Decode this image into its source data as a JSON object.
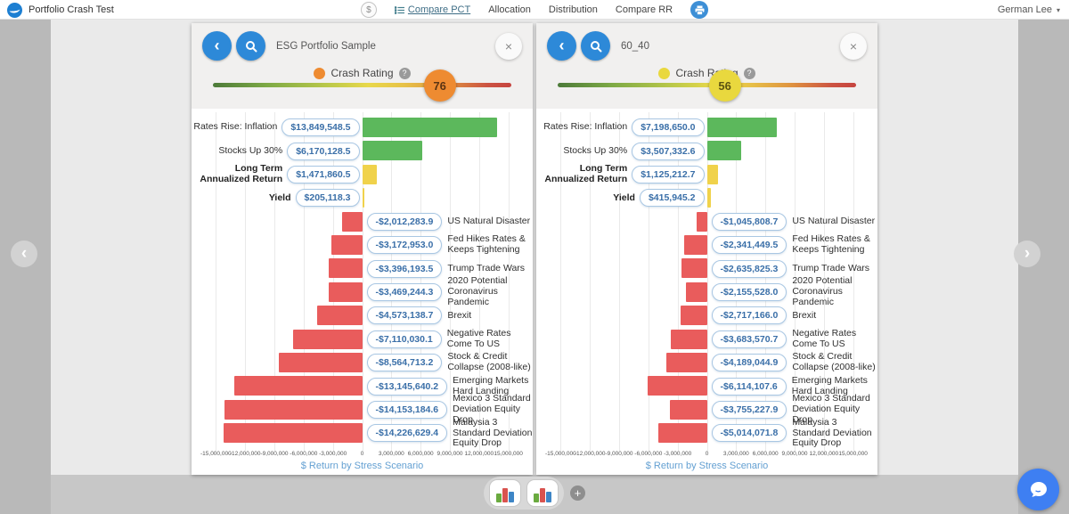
{
  "topbar": {
    "title": "Portfolio Crash Test",
    "currency_button": "$",
    "nav": [
      {
        "label": "Compare PCT",
        "active": true
      },
      {
        "label": "Allocation",
        "active": false
      },
      {
        "label": "Distribution",
        "active": false
      },
      {
        "label": "Compare RR",
        "active": false
      }
    ],
    "user": {
      "name": "German Lee"
    }
  },
  "icons": {
    "close": "×",
    "back": "‹",
    "help": "?",
    "caret": "▾",
    "prev": "‹",
    "next": "›",
    "add": "+"
  },
  "palette": {
    "positive": "#5cb85c",
    "neutral": "#f0d24b",
    "negative": "#e95c5c",
    "accent_blue": "#2d89d8",
    "pill_border": "#a9c7e3",
    "pill_text": "#3a6fa8",
    "axis_label_color": "#64a0d2"
  },
  "panels": [
    {
      "title": "ESG Portfolio Sample",
      "crash_rating": {
        "label": "Crash Rating",
        "value": 76,
        "marker_color": "#ee8b31",
        "text_color": "#5a3413"
      },
      "chart_data": {
        "type": "bar",
        "orientation": "horizontal",
        "xlabel": "$ Return by Stress Scenario",
        "xlim": [
          -17500000,
          17500000
        ],
        "grid": true,
        "ticks": [
          {
            "value": -15000000,
            "label": "-15,000,000"
          },
          {
            "value": -12000000,
            "label": "-12,000,000"
          },
          {
            "value": -9000000,
            "label": "-9,000,000"
          },
          {
            "value": -6000000,
            "label": "-6,000,000"
          },
          {
            "value": -3000000,
            "label": "-3,000,000"
          },
          {
            "value": 0,
            "label": "0"
          },
          {
            "value": 3000000,
            "label": "3,000,000"
          },
          {
            "value": 6000000,
            "label": "6,000,000"
          },
          {
            "value": 9000000,
            "label": "9,000,000"
          },
          {
            "value": 12000000,
            "label": "12,000,000"
          },
          {
            "value": 15000000,
            "label": "15,000,000"
          }
        ],
        "rows": [
          {
            "label": "Rates Rise: Inflation",
            "value": 13849548.5,
            "value_label": "$13,849,548.5",
            "color": "positive",
            "bold": false
          },
          {
            "label": "Stocks Up 30%",
            "value": 6170128.5,
            "value_label": "$6,170,128.5",
            "color": "positive",
            "bold": false
          },
          {
            "label": "Long Term Annualized Return",
            "value": 1471860.5,
            "value_label": "$1,471,860.5",
            "color": "neutral",
            "bold": true
          },
          {
            "label": "Yield",
            "value": 205118.3,
            "value_label": "$205,118.3",
            "color": "neutral",
            "bold": true
          },
          {
            "label": "US Natural Disaster",
            "value": -2012283.9,
            "value_label": "-$2,012,283.9",
            "color": "negative",
            "bold": false
          },
          {
            "label": "Fed Hikes Rates & Keeps Tightening",
            "value": -3172953.0,
            "value_label": "-$3,172,953.0",
            "color": "negative",
            "bold": false
          },
          {
            "label": "Trump Trade Wars",
            "value": -3396193.5,
            "value_label": "-$3,396,193.5",
            "color": "negative",
            "bold": false
          },
          {
            "label": "2020 Potential Coronavirus Pandemic",
            "value": -3469244.3,
            "value_label": "-$3,469,244.3",
            "color": "negative",
            "bold": false
          },
          {
            "label": "Brexit",
            "value": -4573138.7,
            "value_label": "-$4,573,138.7",
            "color": "negative",
            "bold": false
          },
          {
            "label": "Negative Rates Come To US",
            "value": -7110030.1,
            "value_label": "-$7,110,030.1",
            "color": "negative",
            "bold": false
          },
          {
            "label": "Stock & Credit Collapse (2008-like)",
            "value": -8564713.2,
            "value_label": "-$8,564,713.2",
            "color": "negative",
            "bold": false
          },
          {
            "label": "Emerging Markets Hard Landing",
            "value": -13145640.2,
            "value_label": "-$13,145,640.2",
            "color": "negative",
            "bold": false
          },
          {
            "label": "Mexico 3 Standard Deviation Equity Drop",
            "value": -14153184.6,
            "value_label": "-$14,153,184.6",
            "color": "negative",
            "bold": false
          },
          {
            "label": "Malaysia 3 Standard Deviation Equity Drop",
            "value": -14226629.4,
            "value_label": "-$14,226,629.4",
            "color": "negative",
            "bold": false
          }
        ]
      }
    },
    {
      "title": "60_40",
      "crash_rating": {
        "label": "Crash Rating",
        "value": 56,
        "marker_color": "#e9d83e",
        "text_color": "#5d5412"
      },
      "chart_data": {
        "type": "bar",
        "orientation": "horizontal",
        "xlabel": "$ Return by Stress Scenario",
        "xlim": [
          -17500000,
          17500000
        ],
        "grid": true,
        "ticks": [
          {
            "value": -15000000,
            "label": "-15,000,000"
          },
          {
            "value": -12000000,
            "label": "-12,000,000"
          },
          {
            "value": -9000000,
            "label": "-9,000,000"
          },
          {
            "value": -6000000,
            "label": "-6,000,000"
          },
          {
            "value": -3000000,
            "label": "-3,000,000"
          },
          {
            "value": 0,
            "label": "0"
          },
          {
            "value": 3000000,
            "label": "3,000,000"
          },
          {
            "value": 6000000,
            "label": "6,000,000"
          },
          {
            "value": 9000000,
            "label": "9,000,000"
          },
          {
            "value": 12000000,
            "label": "12,000,000"
          },
          {
            "value": 15000000,
            "label": "15,000,000"
          }
        ],
        "rows": [
          {
            "label": "Rates Rise: Inflation",
            "value": 7198650.0,
            "value_label": "$7,198,650.0",
            "color": "positive",
            "bold": false
          },
          {
            "label": "Stocks Up 30%",
            "value": 3507332.6,
            "value_label": "$3,507,332.6",
            "color": "positive",
            "bold": false
          },
          {
            "label": "Long Term Annualized Return",
            "value": 1125212.7,
            "value_label": "$1,125,212.7",
            "color": "neutral",
            "bold": true
          },
          {
            "label": "Yield",
            "value": 415945.2,
            "value_label": "$415,945.2",
            "color": "neutral",
            "bold": true
          },
          {
            "label": "US Natural Disaster",
            "value": -1045808.7,
            "value_label": "-$1,045,808.7",
            "color": "negative",
            "bold": false
          },
          {
            "label": "Fed Hikes Rates & Keeps Tightening",
            "value": -2341449.5,
            "value_label": "-$2,341,449.5",
            "color": "negative",
            "bold": false
          },
          {
            "label": "Trump Trade Wars",
            "value": -2635825.3,
            "value_label": "-$2,635,825.3",
            "color": "negative",
            "bold": false
          },
          {
            "label": "2020 Potential Coronavirus Pandemic",
            "value": -2155528.0,
            "value_label": "-$2,155,528.0",
            "color": "negative",
            "bold": false
          },
          {
            "label": "Brexit",
            "value": -2717166.0,
            "value_label": "-$2,717,166.0",
            "color": "negative",
            "bold": false
          },
          {
            "label": "Negative Rates Come To US",
            "value": -3683570.7,
            "value_label": "-$3,683,570.7",
            "color": "negative",
            "bold": false
          },
          {
            "label": "Stock & Credit Collapse (2008-like)",
            "value": -4189044.9,
            "value_label": "-$4,189,044.9",
            "color": "negative",
            "bold": false
          },
          {
            "label": "Emerging Markets Hard Landing",
            "value": -6114107.6,
            "value_label": "-$6,114,107.6",
            "color": "negative",
            "bold": false
          },
          {
            "label": "Mexico 3 Standard Deviation Equity Drop",
            "value": -3755227.9,
            "value_label": "-$3,755,227.9",
            "color": "negative",
            "bold": false
          },
          {
            "label": "Malaysia 3 Standard Deviation Equity Drop",
            "value": -5014071.8,
            "value_label": "-$5,014,071.8",
            "color": "negative",
            "bold": false
          }
        ]
      }
    }
  ],
  "bottom_bar": {
    "thumbnails": [
      "compare-chart-1",
      "compare-chart-2"
    ]
  }
}
